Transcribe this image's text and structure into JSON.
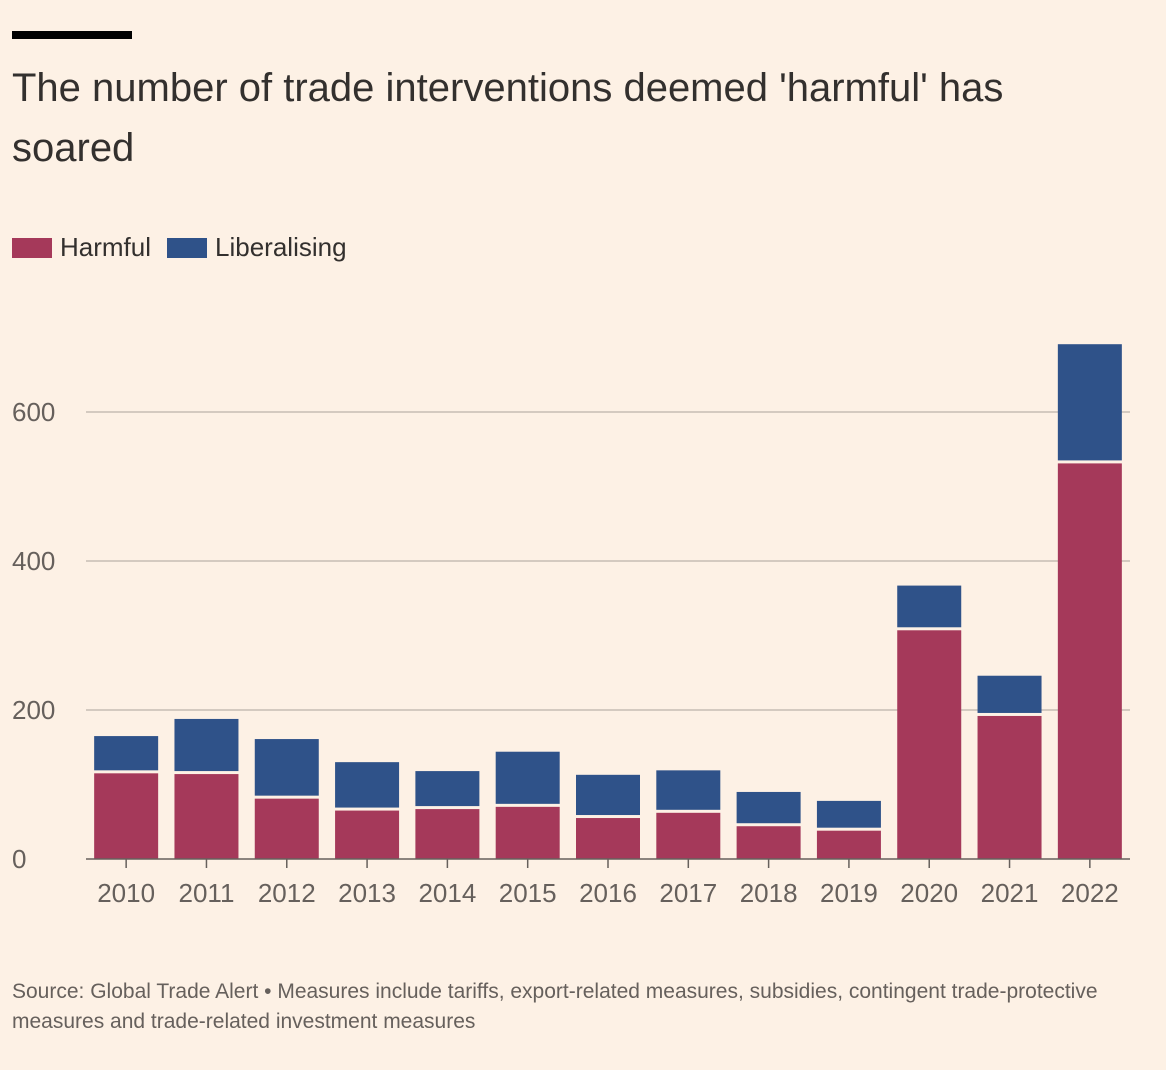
{
  "header": {
    "title": "The number of trade interventions deemed 'harmful' has soared"
  },
  "legend": {
    "harmful_label": "Harmful",
    "liberalising_label": "Liberalising"
  },
  "colors": {
    "harmful": "#a5395a",
    "liberalising": "#2f5289",
    "grid": "#c7bdb4",
    "axis": "#66605c",
    "background": "#fdf1e5"
  },
  "chart_data": {
    "type": "bar",
    "stacked": true,
    "categories": [
      "2010",
      "2011",
      "2012",
      "2013",
      "2014",
      "2015",
      "2016",
      "2017",
      "2018",
      "2019",
      "2020",
      "2021",
      "2022"
    ],
    "series": [
      {
        "name": "Harmful",
        "values": [
          115,
          114,
          81,
          65,
          67,
          70,
          55,
          62,
          44,
          38,
          307,
          192,
          531
        ]
      },
      {
        "name": "Liberalising",
        "values": [
          50,
          74,
          80,
          65,
          51,
          74,
          58,
          57,
          46,
          40,
          60,
          54,
          160
        ]
      }
    ],
    "yticks": [
      0,
      200,
      400,
      600
    ],
    "ylim": [
      0,
      700
    ],
    "grid": true,
    "legend_position": "top-left",
    "xlabel": "",
    "ylabel": ""
  },
  "footer": {
    "source": "Source: Global Trade Alert • Measures include tariffs, export-related measures, subsidies, contingent trade-protective measures and trade-related investment measures"
  }
}
